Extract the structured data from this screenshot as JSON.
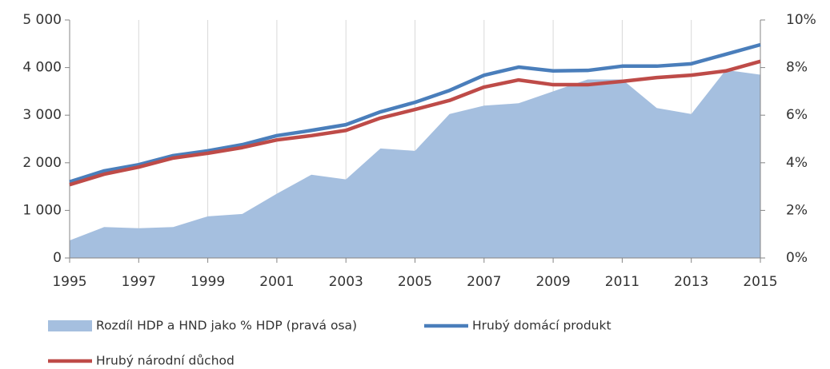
{
  "chart_data": {
    "type": "line",
    "x": [
      1995,
      1996,
      1997,
      1998,
      1999,
      2000,
      2001,
      2002,
      2003,
      2004,
      2005,
      2006,
      2007,
      2008,
      2009,
      2010,
      2011,
      2012,
      2013,
      2014,
      2015
    ],
    "xlim": [
      1995,
      2015
    ],
    "xticks": [
      1995,
      1997,
      1999,
      2001,
      2003,
      2005,
      2007,
      2009,
      2011,
      2013,
      2015
    ],
    "ylim": [
      0,
      5000
    ],
    "yticks": [
      0,
      {
        "value": 1000,
        "label": "1 000"
      },
      {
        "value": 2000,
        "label": "2 000"
      },
      {
        "value": 3000,
        "label": "3 000"
      },
      {
        "value": 4000,
        "label": "4 000"
      },
      {
        "value": 5000,
        "label": "5 000"
      }
    ],
    "y2lim": [
      0,
      10
    ],
    "y2ticks": [
      {
        "value": 0,
        "label": "0%"
      },
      {
        "value": 2,
        "label": "2%"
      },
      {
        "value": 4,
        "label": "4%"
      },
      {
        "value": 6,
        "label": "6%"
      },
      {
        "value": 8,
        "label": "8%"
      },
      {
        "value": 10,
        "label": "10%"
      }
    ],
    "grid": "x",
    "legend": "bottom",
    "series": [
      {
        "name": "Rozdíl HDP a HND jako % HDP (pravá osa)",
        "type": "area",
        "axis": "y2",
        "color": "#a5bfdf",
        "values": [
          0.74,
          1.3,
          1.25,
          1.3,
          1.75,
          1.85,
          2.7,
          3.5,
          3.3,
          4.6,
          4.5,
          6.05,
          6.4,
          6.5,
          7.0,
          7.5,
          7.5,
          6.3,
          6.05,
          7.9,
          7.7
        ]
      },
      {
        "name": "Hrubý domácí produkt",
        "color": "#4a7ebb",
        "values": [
          1600,
          1830,
          1960,
          2150,
          2250,
          2380,
          2570,
          2680,
          2800,
          3070,
          3270,
          3520,
          3840,
          4010,
          3930,
          3940,
          4030,
          4030,
          4080,
          4280,
          4480
        ]
      },
      {
        "name": "Hrubý národní důchod",
        "color": "#be4b48",
        "values": [
          1540,
          1760,
          1910,
          2100,
          2200,
          2320,
          2480,
          2570,
          2680,
          2940,
          3120,
          3310,
          3590,
          3740,
          3640,
          3640,
          3710,
          3790,
          3840,
          3930,
          4130
        ]
      }
    ]
  }
}
